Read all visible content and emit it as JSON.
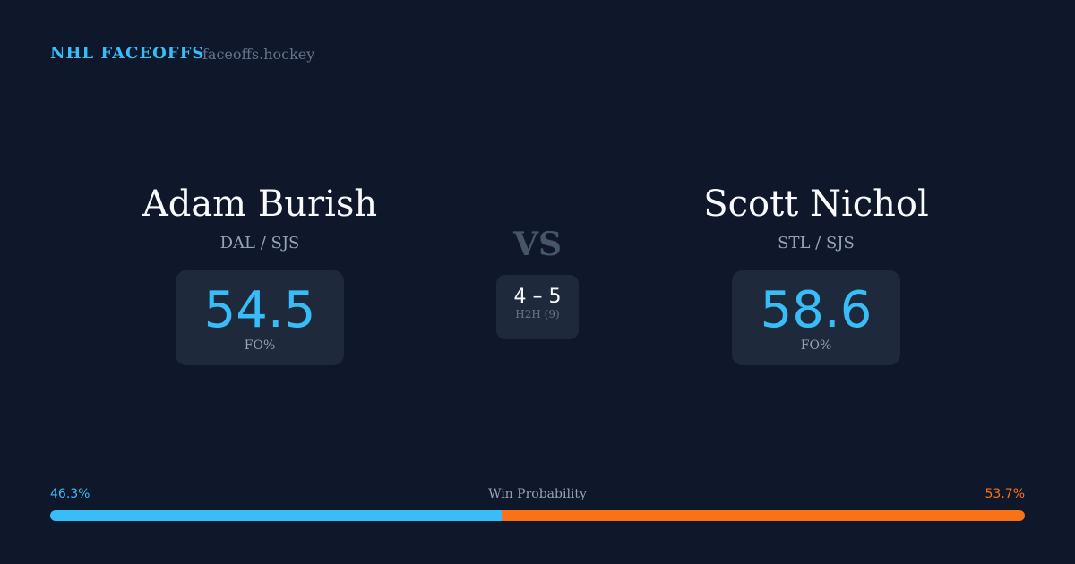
{
  "header": {
    "brand": "NHL FACEOFFS",
    "site": "faceoffs.hockey"
  },
  "player1": {
    "name": "Adam Burish",
    "teams": "DAL / SJS",
    "fo_pct": "54.5",
    "fo_label": "FO%"
  },
  "player2": {
    "name": "Scott Nichol",
    "teams": "STL / SJS",
    "fo_pct": "58.6",
    "fo_label": "FO%"
  },
  "vs": "VS",
  "h2h": {
    "score": "4 – 5",
    "label": "H2H (9)"
  },
  "win_prob": {
    "label": "Win Probability",
    "p1": "46.3%",
    "p2": "53.7%",
    "p1_value": 46.3,
    "p1_color": "#38bdf8",
    "p2_color": "#f97316"
  }
}
